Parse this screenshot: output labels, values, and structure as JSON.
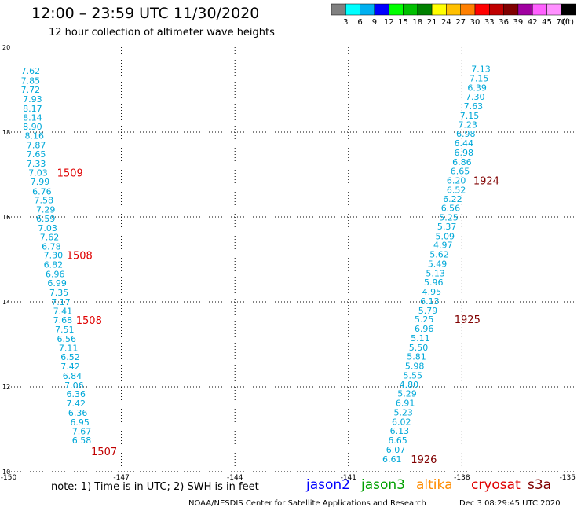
{
  "header": {
    "title": "12:00 – 23:59 UTC 11/30/2020",
    "subtitle": "12 hour collection of altimeter wave heights"
  },
  "legend": {
    "unit": "(ft)",
    "bins": [
      {
        "label": "3",
        "color": "#808080"
      },
      {
        "label": "6",
        "color": "#00ffff"
      },
      {
        "label": "9",
        "color": "#00b0f0"
      },
      {
        "label": "12",
        "color": "#0000ff"
      },
      {
        "label": "15",
        "color": "#00ff00"
      },
      {
        "label": "18",
        "color": "#00c000"
      },
      {
        "label": "21",
        "color": "#008000"
      },
      {
        "label": "24",
        "color": "#ffff00"
      },
      {
        "label": "27",
        "color": "#ffc000"
      },
      {
        "label": "30",
        "color": "#ff8000"
      },
      {
        "label": "33",
        "color": "#ff0000"
      },
      {
        "label": "36",
        "color": "#c00000"
      },
      {
        "label": "39",
        "color": "#800000"
      },
      {
        "label": "42",
        "color": "#a000a0"
      },
      {
        "label": "45",
        "color": "#ff60ff"
      },
      {
        "label": "70",
        "color": "#ff90ff"
      },
      {
        "label": "",
        "color": "#000000"
      }
    ]
  },
  "chart_data": {
    "type": "scatter",
    "xlim": [
      -150,
      -135
    ],
    "ylim": [
      10,
      20
    ],
    "x_ticks": [
      "-150",
      "-147",
      "-144",
      "-141",
      "-138",
      "-135"
    ],
    "y_ticks": [
      "10",
      "12",
      "14",
      "16",
      "18",
      "20"
    ],
    "grid": true,
    "left_track": [
      {
        "x": -149.4,
        "y": 19.44,
        "v": "7.62"
      },
      {
        "x": -149.4,
        "y": 19.21,
        "v": "7.85"
      },
      {
        "x": -149.4,
        "y": 19.0,
        "v": "7.72"
      },
      {
        "x": -149.35,
        "y": 18.78,
        "v": "7.93"
      },
      {
        "x": -149.35,
        "y": 18.56,
        "v": "8.17"
      },
      {
        "x": -149.35,
        "y": 18.34,
        "v": "8.14"
      },
      {
        "x": -149.35,
        "y": 18.13,
        "v": "8.90"
      },
      {
        "x": -149.3,
        "y": 17.92,
        "v": "8.16"
      },
      {
        "x": -149.25,
        "y": 17.69,
        "v": "7.87"
      },
      {
        "x": -149.25,
        "y": 17.48,
        "v": "7.65"
      },
      {
        "x": -149.25,
        "y": 17.26,
        "v": "7.33"
      },
      {
        "x": -149.2,
        "y": 17.05,
        "v": "7.03"
      },
      {
        "x": -149.15,
        "y": 16.83,
        "v": "7.99"
      },
      {
        "x": -149.1,
        "y": 16.6,
        "v": "6.76"
      },
      {
        "x": -149.05,
        "y": 16.4,
        "v": "7.58"
      },
      {
        "x": -149.0,
        "y": 16.18,
        "v": "7.29"
      },
      {
        "x": -149.0,
        "y": 15.96,
        "v": "6.59"
      },
      {
        "x": -148.95,
        "y": 15.74,
        "v": "7.03"
      },
      {
        "x": -148.9,
        "y": 15.53,
        "v": "7.62"
      },
      {
        "x": -148.85,
        "y": 15.31,
        "v": "6.78"
      },
      {
        "x": -148.8,
        "y": 15.1,
        "v": "7.30"
      },
      {
        "x": -148.8,
        "y": 14.88,
        "v": "6.82"
      },
      {
        "x": -148.75,
        "y": 14.66,
        "v": "6.96"
      },
      {
        "x": -148.7,
        "y": 14.44,
        "v": "6.99"
      },
      {
        "x": -148.65,
        "y": 14.22,
        "v": "7.35"
      },
      {
        "x": -148.6,
        "y": 14.0,
        "v": "7.17"
      },
      {
        "x": -148.55,
        "y": 13.79,
        "v": "7.41"
      },
      {
        "x": -148.55,
        "y": 13.57,
        "v": "7.68"
      },
      {
        "x": -148.5,
        "y": 13.35,
        "v": "7.51"
      },
      {
        "x": -148.45,
        "y": 13.13,
        "v": "6.56"
      },
      {
        "x": -148.4,
        "y": 12.92,
        "v": "7.11"
      },
      {
        "x": -148.35,
        "y": 12.7,
        "v": "6.52"
      },
      {
        "x": -148.35,
        "y": 12.48,
        "v": "7.42"
      },
      {
        "x": -148.3,
        "y": 12.26,
        "v": "6.84"
      },
      {
        "x": -148.25,
        "y": 12.04,
        "v": "7.06"
      },
      {
        "x": -148.2,
        "y": 11.83,
        "v": "6.36"
      },
      {
        "x": -148.2,
        "y": 11.61,
        "v": "7.42"
      },
      {
        "x": -148.15,
        "y": 11.39,
        "v": "6.36"
      },
      {
        "x": -148.1,
        "y": 11.17,
        "v": "6.95"
      },
      {
        "x": -148.05,
        "y": 10.95,
        "v": "7.67"
      },
      {
        "x": -148.05,
        "y": 10.74,
        "v": "6.58"
      }
    ],
    "right_track": [
      {
        "x": -137.5,
        "y": 19.49,
        "v": "7.13"
      },
      {
        "x": -137.55,
        "y": 19.27,
        "v": "7.15"
      },
      {
        "x": -137.6,
        "y": 19.05,
        "v": "6.39"
      },
      {
        "x": -137.65,
        "y": 18.83,
        "v": "7.30"
      },
      {
        "x": -137.7,
        "y": 18.61,
        "v": "7.63"
      },
      {
        "x": -137.8,
        "y": 18.39,
        "v": "7.15"
      },
      {
        "x": -137.85,
        "y": 18.18,
        "v": "7.23"
      },
      {
        "x": -137.9,
        "y": 17.96,
        "v": "6.98"
      },
      {
        "x": -137.95,
        "y": 17.74,
        "v": "6.44"
      },
      {
        "x": -137.95,
        "y": 17.52,
        "v": "6.98"
      },
      {
        "x": -138.0,
        "y": 17.3,
        "v": "6.86"
      },
      {
        "x": -138.05,
        "y": 17.08,
        "v": "6.65"
      },
      {
        "x": -138.15,
        "y": 16.86,
        "v": "6.20"
      },
      {
        "x": -138.15,
        "y": 16.64,
        "v": "6.52"
      },
      {
        "x": -138.25,
        "y": 16.43,
        "v": "6.22"
      },
      {
        "x": -138.3,
        "y": 16.21,
        "v": "6.56"
      },
      {
        "x": -138.35,
        "y": 15.99,
        "v": "5.25"
      },
      {
        "x": -138.4,
        "y": 15.78,
        "v": "5.37"
      },
      {
        "x": -138.45,
        "y": 15.55,
        "v": "5.09"
      },
      {
        "x": -138.5,
        "y": 15.34,
        "v": "4.97"
      },
      {
        "x": -138.6,
        "y": 15.12,
        "v": "5.62"
      },
      {
        "x": -138.65,
        "y": 14.9,
        "v": "5.49"
      },
      {
        "x": -138.7,
        "y": 14.68,
        "v": "5.13"
      },
      {
        "x": -138.75,
        "y": 14.46,
        "v": "5.96"
      },
      {
        "x": -138.8,
        "y": 14.24,
        "v": "4.95"
      },
      {
        "x": -138.85,
        "y": 14.02,
        "v": "6.13"
      },
      {
        "x": -138.9,
        "y": 13.8,
        "v": "5.79"
      },
      {
        "x": -139.0,
        "y": 13.59,
        "v": "5.25"
      },
      {
        "x": -139.0,
        "y": 13.37,
        "v": "6.96"
      },
      {
        "x": -139.1,
        "y": 13.15,
        "v": "5.11"
      },
      {
        "x": -139.15,
        "y": 12.93,
        "v": "5.50"
      },
      {
        "x": -139.2,
        "y": 12.71,
        "v": "5.81"
      },
      {
        "x": -139.25,
        "y": 12.49,
        "v": "5.98"
      },
      {
        "x": -139.3,
        "y": 12.27,
        "v": "5.55"
      },
      {
        "x": -139.4,
        "y": 12.06,
        "v": "4.80"
      },
      {
        "x": -139.45,
        "y": 11.84,
        "v": "5.29"
      },
      {
        "x": -139.5,
        "y": 11.62,
        "v": "6.91"
      },
      {
        "x": -139.55,
        "y": 11.4,
        "v": "5.23"
      },
      {
        "x": -139.6,
        "y": 11.18,
        "v": "6.02"
      },
      {
        "x": -139.65,
        "y": 10.96,
        "v": "6.13"
      },
      {
        "x": -139.7,
        "y": 10.74,
        "v": "6.65"
      },
      {
        "x": -139.75,
        "y": 10.52,
        "v": "6.07"
      },
      {
        "x": -139.85,
        "y": 10.3,
        "v": "6.61"
      }
    ],
    "time_labels": [
      {
        "x": -148.7,
        "y": 17.05,
        "text": "1509",
        "color": "#e00000"
      },
      {
        "x": -148.45,
        "y": 15.1,
        "text": "1508",
        "color": "#e00000"
      },
      {
        "x": -148.2,
        "y": 13.57,
        "text": "1508",
        "color": "#e00000"
      },
      {
        "x": -147.8,
        "y": 10.48,
        "text": "1507",
        "color": "#c00000"
      },
      {
        "x": -137.7,
        "y": 16.86,
        "text": "1924",
        "color": "#800000"
      },
      {
        "x": -138.2,
        "y": 13.59,
        "text": "1925",
        "color": "#800000"
      },
      {
        "x": -139.35,
        "y": 10.3,
        "text": "1926",
        "color": "#800000"
      }
    ]
  },
  "footer": {
    "note": "note: 1) Time is in UTC; 2) SWH is in feet",
    "satellites": [
      {
        "name": "jason2",
        "color": "#0000ff"
      },
      {
        "name": "jason3",
        "color": "#00a000"
      },
      {
        "name": "altika",
        "color": "#ff8c00"
      },
      {
        "name": "cryosat",
        "color": "#e00000"
      },
      {
        "name": "s3a",
        "color": "#800000"
      }
    ],
    "credit": "NOAA/NESDIS Center for Satellite Applications and Research",
    "timestamp": "Dec  3 08:29:45 UTC 2020"
  }
}
